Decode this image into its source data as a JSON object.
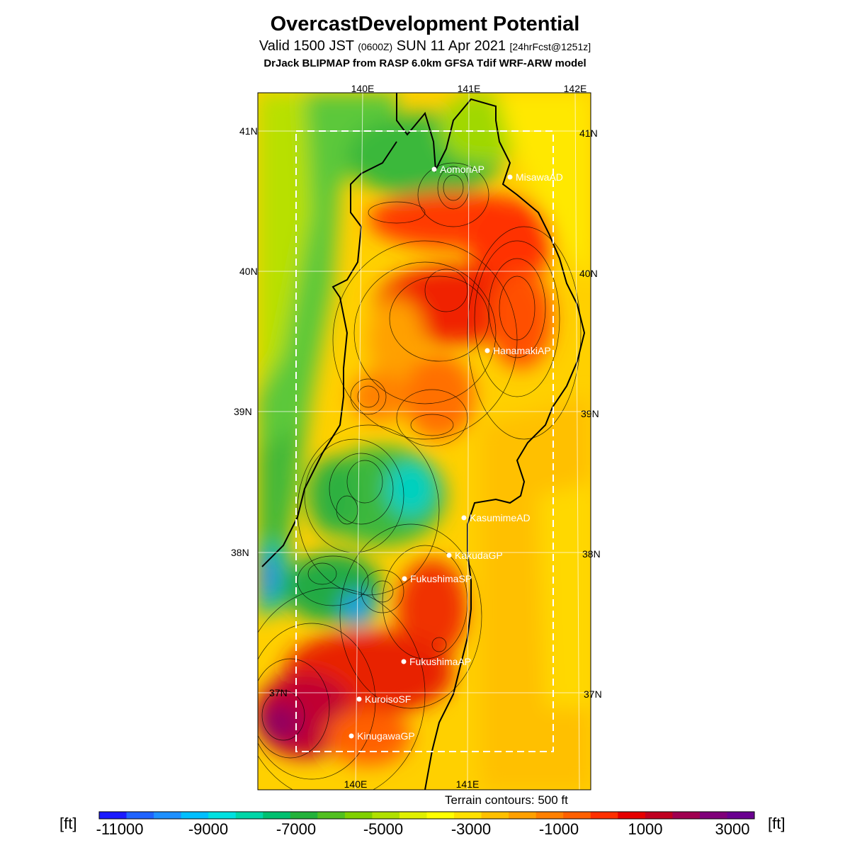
{
  "header": {
    "title": "OvercastDevelopment Potential",
    "valid_prefix": "Valid 1500 JST",
    "valid_z": "(0600Z)",
    "valid_date": "SUN 11 Apr 2021",
    "forecast": "[24hrFcst@1251z]",
    "model": "DrJack BLIPMAP from RASP 6.0km GFSA Tdif WRF-ARW model"
  },
  "map": {
    "lon_labels_top": [
      "140E",
      "141E",
      "142E"
    ],
    "lon_labels_bottom": [
      "140E",
      "141E"
    ],
    "lat_labels": [
      "41N",
      "40N",
      "39N",
      "38N",
      "37N"
    ],
    "stations": [
      {
        "name": "AomoriAP"
      },
      {
        "name": "MisawaAD"
      },
      {
        "name": "HanamakiAP"
      },
      {
        "name": "KasumimeAD"
      },
      {
        "name": "KakudaGP"
      },
      {
        "name": "FukushimaSP"
      },
      {
        "name": "FukushimaAP"
      },
      {
        "name": "KuroisoSF"
      },
      {
        "name": "KinugawaGP"
      }
    ]
  },
  "footer": {
    "terrain_note": "Terrain contours: 500 ft",
    "unit": "[ft]",
    "colorbar_labels": [
      "-11000",
      "-9000",
      "-7000",
      "-5000",
      "-3000",
      "-1000",
      "1000",
      "3000"
    ],
    "colorbar_colors": [
      "#1a1aff",
      "#1f63ff",
      "#1e90ff",
      "#00bfff",
      "#00e0e0",
      "#00d6a8",
      "#00c070",
      "#23b23b",
      "#52c020",
      "#80d000",
      "#b0e000",
      "#e0f000",
      "#ffff00",
      "#ffe000",
      "#ffc000",
      "#ffa000",
      "#ff8000",
      "#ff6000",
      "#ff3000",
      "#e60000",
      "#c00020",
      "#a00050",
      "#80007a",
      "#6a0090"
    ]
  }
}
